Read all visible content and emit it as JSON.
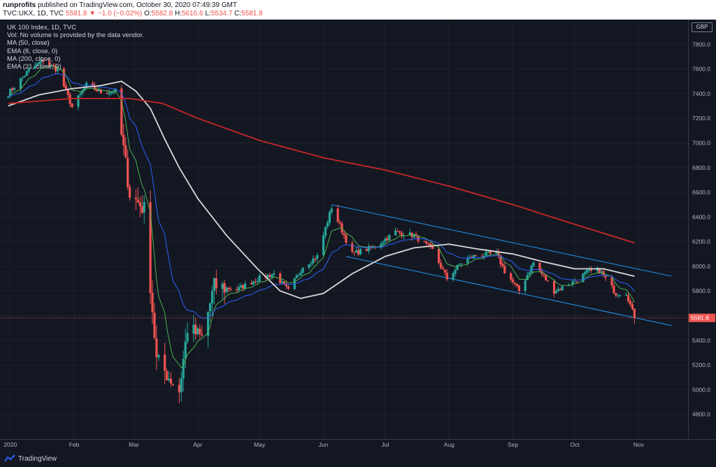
{
  "header": {
    "publisher": "runprofits",
    "published_text": " published on TradingView.com, October 30, 2020 07:49:39 GMT",
    "symbol": "TVC:UKX, 1D, TVC",
    "last": "5581.8",
    "change": "−1.0 (−0.02%)",
    "open_label": "O:",
    "open": "5582.8",
    "high_label": "H:",
    "high": "5616.6",
    "low_label": "L:",
    "low": "5534.7",
    "close_label": "C:",
    "close": "5581.8"
  },
  "legend": [
    "UK 100 Index, 1D, TVC",
    "Vol: No volume is provided by the data vendor.",
    "MA (50, close)",
    "EMA (8, close, 0)",
    "MA (200, close, 0)",
    "EMA (21, close, 0)"
  ],
  "currency": "GBP",
  "footer": {
    "brand": "TradingView"
  },
  "colors": {
    "background": "#131722",
    "up": "#26a69a",
    "down": "#ef5350",
    "ma50": "#d9d9d9",
    "ema8": "#4caf50",
    "ma200": "#c62828",
    "ema21": "#2962ff",
    "channel": "#2196f3"
  },
  "chart_data": {
    "type": "candlestick",
    "x_ticks": [
      "2020",
      "Feb",
      "Mar",
      "Apr",
      "May",
      "Jun",
      "Jul",
      "Aug",
      "Sep",
      "Oct",
      "Nov"
    ],
    "x_tick_dates": [
      "2020-01-01",
      "2020-02-01",
      "2020-03-01",
      "2020-04-01",
      "2020-05-01",
      "2020-06-01",
      "2020-07-01",
      "2020-08-01",
      "2020-09-01",
      "2020-10-01",
      "2020-11-01"
    ],
    "y_ticks": [
      4800,
      5000,
      5200,
      5400,
      5600,
      5800,
      6000,
      6200,
      6400,
      6600,
      6800,
      7000,
      7200,
      7400,
      7600,
      7800
    ],
    "ylim": [
      4600,
      8000
    ],
    "xlim": [
      "2019-12-27",
      "2020-11-25"
    ],
    "last_price_label": "5581.8",
    "anchors": [
      [
        "2019-12-31",
        7400
      ],
      [
        "2020-01-10",
        7590
      ],
      [
        "2020-01-17",
        7670
      ],
      [
        "2020-01-24",
        7590
      ],
      [
        "2020-01-31",
        7290
      ],
      [
        "2020-02-07",
        7470
      ],
      [
        "2020-02-14",
        7410
      ],
      [
        "2020-02-21",
        7420
      ],
      [
        "2020-02-28",
        6590
      ],
      [
        "2020-03-06",
        6460
      ],
      [
        "2020-03-12",
        5240
      ],
      [
        "2020-03-16",
        5150
      ],
      [
        "2020-03-23",
        4990
      ],
      [
        "2020-03-27",
        5500
      ],
      [
        "2020-04-03",
        5420
      ],
      [
        "2020-04-09",
        5840
      ],
      [
        "2020-04-20",
        5810
      ],
      [
        "2020-04-30",
        5900
      ],
      [
        "2020-05-08",
        5940
      ],
      [
        "2020-05-15",
        5800
      ],
      [
        "2020-05-22",
        6000
      ],
      [
        "2020-05-29",
        6080
      ],
      [
        "2020-06-05",
        6480
      ],
      [
        "2020-06-15",
        6100
      ],
      [
        "2020-06-26",
        6160
      ],
      [
        "2020-07-06",
        6280
      ],
      [
        "2020-07-15",
        6250
      ],
      [
        "2020-07-24",
        6130
      ],
      [
        "2020-07-31",
        5900
      ],
      [
        "2020-08-07",
        6030
      ],
      [
        "2020-08-14",
        6090
      ],
      [
        "2020-08-24",
        6100
      ],
      [
        "2020-08-28",
        5960
      ],
      [
        "2020-09-04",
        5800
      ],
      [
        "2020-09-11",
        6030
      ],
      [
        "2020-09-21",
        5800
      ],
      [
        "2020-09-30",
        5870
      ],
      [
        "2020-10-07",
        5950
      ],
      [
        "2020-10-13",
        5970
      ],
      [
        "2020-10-21",
        5780
      ],
      [
        "2020-10-26",
        5790
      ],
      [
        "2020-10-30",
        5581.8
      ]
    ],
    "series": [
      {
        "name": "MA (50, close)",
        "type": "line",
        "points": [
          [
            "2019-12-31",
            7300
          ],
          [
            "2020-01-15",
            7390
          ],
          [
            "2020-01-31",
            7440
          ],
          [
            "2020-02-14",
            7465
          ],
          [
            "2020-02-24",
            7500
          ],
          [
            "2020-03-02",
            7420
          ],
          [
            "2020-03-09",
            7280
          ],
          [
            "2020-03-16",
            7030
          ],
          [
            "2020-03-23",
            6800
          ],
          [
            "2020-04-01",
            6550
          ],
          [
            "2020-04-15",
            6250
          ],
          [
            "2020-04-30",
            5980
          ],
          [
            "2020-05-11",
            5800
          ],
          [
            "2020-05-21",
            5740
          ],
          [
            "2020-06-01",
            5780
          ],
          [
            "2020-06-15",
            5940
          ],
          [
            "2020-07-01",
            6080
          ],
          [
            "2020-07-15",
            6150
          ],
          [
            "2020-08-01",
            6180
          ],
          [
            "2020-08-15",
            6140
          ],
          [
            "2020-09-01",
            6100
          ],
          [
            "2020-09-15",
            6040
          ],
          [
            "2020-10-01",
            5980
          ],
          [
            "2020-10-15",
            5980
          ],
          [
            "2020-10-30",
            5920
          ]
        ]
      },
      {
        "name": "MA (200, close, 0)",
        "type": "line",
        "points": [
          [
            "2019-12-31",
            7320
          ],
          [
            "2020-01-31",
            7360
          ],
          [
            "2020-02-28",
            7360
          ],
          [
            "2020-03-15",
            7320
          ],
          [
            "2020-04-01",
            7200
          ],
          [
            "2020-05-01",
            7020
          ],
          [
            "2020-06-01",
            6880
          ],
          [
            "2020-07-01",
            6780
          ],
          [
            "2020-08-01",
            6650
          ],
          [
            "2020-09-01",
            6500
          ],
          [
            "2020-10-01",
            6340
          ],
          [
            "2020-10-30",
            6190
          ]
        ]
      },
      {
        "name": "EMA (8, close, 0)",
        "type": "line",
        "points": []
      },
      {
        "name": "EMA (21, close, 0)",
        "type": "line",
        "points": []
      }
    ],
    "channel": {
      "upper": [
        [
          "2020-06-05",
          6500
        ],
        [
          "2020-11-17",
          5920
        ]
      ],
      "lower": [
        [
          "2020-06-12",
          6080
        ],
        [
          "2020-11-17",
          5520
        ]
      ]
    }
  }
}
